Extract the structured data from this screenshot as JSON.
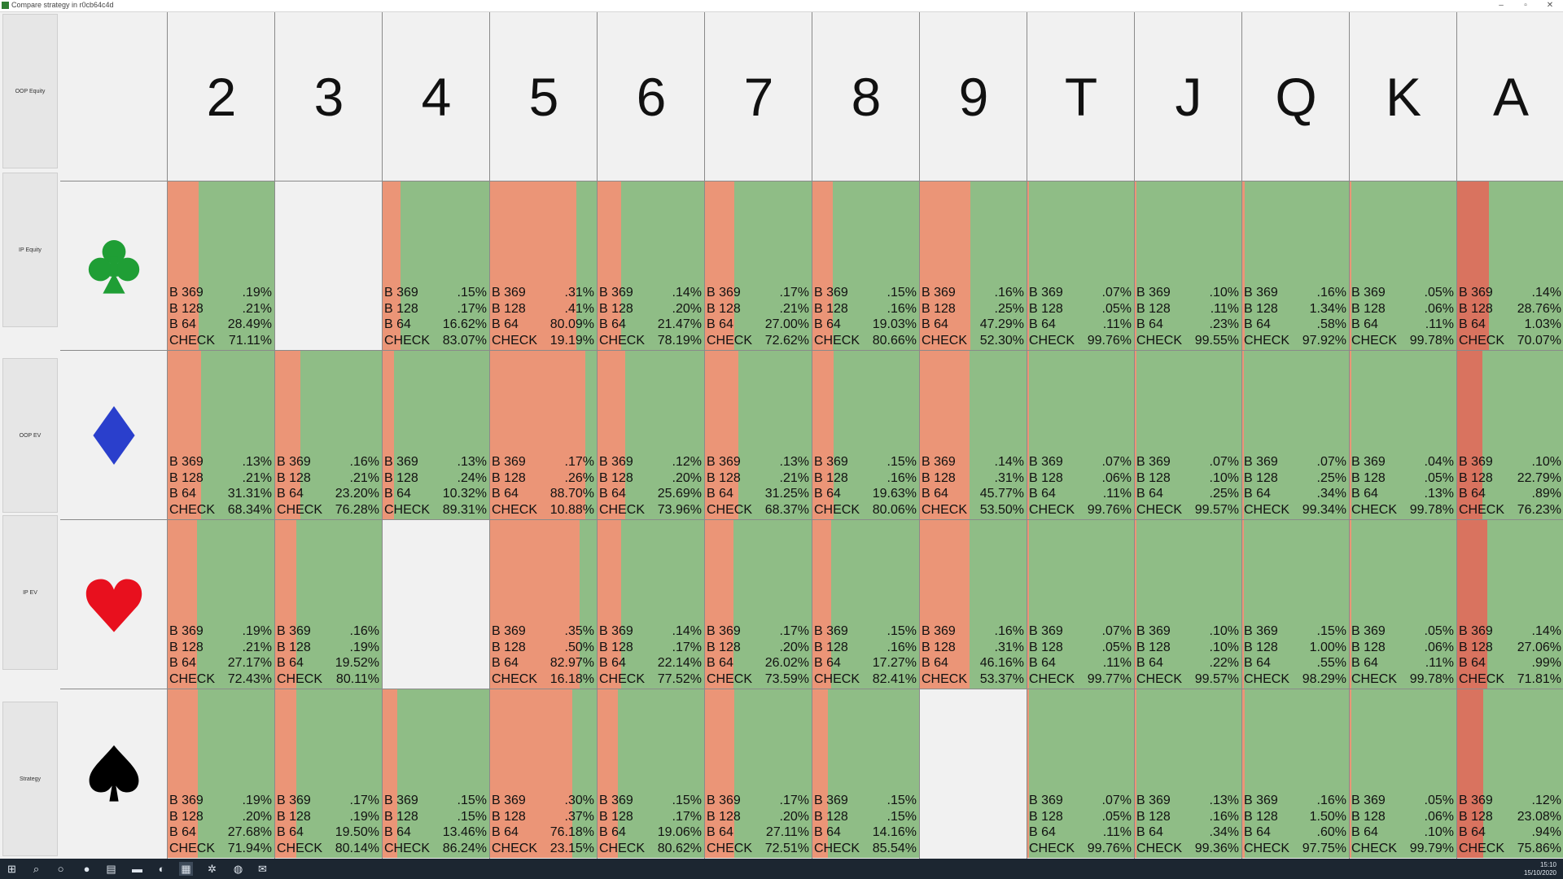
{
  "window": {
    "title": "Compare strategy in r0cb64c4d"
  },
  "side_tabs": [
    "OOP Equity",
    "IP Equity",
    "OOP EV",
    "IP EV",
    "Strategy"
  ],
  "ranks": [
    "2",
    "3",
    "4",
    "5",
    "6",
    "7",
    "8",
    "9",
    "T",
    "J",
    "Q",
    "K",
    "A"
  ],
  "suits": [
    {
      "name": "clubs",
      "color": "#1f9e35"
    },
    {
      "name": "diamonds",
      "color": "#2a3fcc"
    },
    {
      "name": "hearts",
      "color": "#e8101e"
    },
    {
      "name": "spades",
      "color": "#000000"
    }
  ],
  "colors": {
    "check": "#8fbd86",
    "bet": "#eb9577",
    "bet_strong": "#d9735f"
  },
  "action_labels": [
    "B 369",
    "B 128",
    "B 64",
    "CHECK"
  ],
  "rows": [
    [
      {
        "v": [
          ".19%",
          ".21%",
          "28.49%",
          "71.11%"
        ]
      },
      null,
      {
        "v": [
          ".15%",
          ".17%",
          "16.62%",
          "83.07%"
        ]
      },
      {
        "v": [
          ".31%",
          ".41%",
          "80.09%",
          "19.19%"
        ]
      },
      {
        "v": [
          ".14%",
          ".20%",
          "21.47%",
          "78.19%"
        ]
      },
      {
        "v": [
          ".17%",
          ".21%",
          "27.00%",
          "72.62%"
        ]
      },
      {
        "v": [
          ".15%",
          ".16%",
          "19.03%",
          "80.66%"
        ]
      },
      {
        "v": [
          ".16%",
          ".25%",
          "47.29%",
          "52.30%"
        ]
      },
      {
        "v": [
          ".07%",
          ".05%",
          ".11%",
          "99.76%"
        ]
      },
      {
        "v": [
          ".10%",
          ".11%",
          ".23%",
          "99.55%"
        ]
      },
      {
        "v": [
          ".16%",
          "1.34%",
          ".58%",
          "97.92%"
        ]
      },
      {
        "v": [
          ".05%",
          ".06%",
          ".11%",
          "99.78%"
        ]
      },
      {
        "v": [
          ".14%",
          "28.76%",
          "1.03%",
          "70.07%"
        ]
      }
    ],
    [
      {
        "v": [
          ".13%",
          ".21%",
          "31.31%",
          "68.34%"
        ]
      },
      {
        "v": [
          ".16%",
          ".21%",
          "23.20%",
          "76.28%"
        ]
      },
      {
        "v": [
          ".13%",
          ".24%",
          "10.32%",
          "89.31%"
        ]
      },
      {
        "v": [
          ".17%",
          ".26%",
          "88.70%",
          "10.88%"
        ]
      },
      {
        "v": [
          ".12%",
          ".20%",
          "25.69%",
          "73.96%"
        ]
      },
      {
        "v": [
          ".13%",
          ".21%",
          "31.25%",
          "68.37%"
        ]
      },
      {
        "v": [
          ".15%",
          ".16%",
          "19.63%",
          "80.06%"
        ]
      },
      {
        "v": [
          ".14%",
          ".31%",
          "45.77%",
          "53.50%"
        ]
      },
      {
        "v": [
          ".07%",
          ".06%",
          ".11%",
          "99.76%"
        ]
      },
      {
        "v": [
          ".07%",
          ".10%",
          ".25%",
          "99.57%"
        ]
      },
      {
        "v": [
          ".07%",
          ".25%",
          ".34%",
          "99.34%"
        ]
      },
      {
        "v": [
          ".04%",
          ".05%",
          ".13%",
          "99.78%"
        ]
      },
      {
        "v": [
          ".10%",
          "22.79%",
          ".89%",
          "76.23%"
        ]
      }
    ],
    [
      {
        "v": [
          ".19%",
          ".21%",
          "27.17%",
          "72.43%"
        ]
      },
      {
        "v": [
          ".16%",
          ".19%",
          "19.52%",
          "80.11%"
        ]
      },
      null,
      {
        "v": [
          ".35%",
          ".50%",
          "82.97%",
          "16.18%"
        ]
      },
      {
        "v": [
          ".14%",
          ".17%",
          "22.14%",
          "77.52%"
        ]
      },
      {
        "v": [
          ".17%",
          ".20%",
          "26.02%",
          "73.59%"
        ]
      },
      {
        "v": [
          ".15%",
          ".16%",
          "17.27%",
          "82.41%"
        ]
      },
      {
        "v": [
          ".16%",
          ".31%",
          "46.16%",
          "53.37%"
        ]
      },
      {
        "v": [
          ".07%",
          ".05%",
          ".11%",
          "99.77%"
        ]
      },
      {
        "v": [
          ".10%",
          ".10%",
          ".22%",
          "99.57%"
        ]
      },
      {
        "v": [
          ".15%",
          "1.00%",
          ".55%",
          "98.29%"
        ]
      },
      {
        "v": [
          ".05%",
          ".06%",
          ".11%",
          "99.78%"
        ]
      },
      {
        "v": [
          ".14%",
          "27.06%",
          ".99%",
          "71.81%"
        ]
      }
    ],
    [
      {
        "v": [
          ".19%",
          ".20%",
          "27.68%",
          "71.94%"
        ]
      },
      {
        "v": [
          ".17%",
          ".19%",
          "19.50%",
          "80.14%"
        ]
      },
      {
        "v": [
          ".15%",
          ".15%",
          "13.46%",
          "86.24%"
        ]
      },
      {
        "v": [
          ".30%",
          ".37%",
          "76.18%",
          "23.15%"
        ]
      },
      {
        "v": [
          ".15%",
          ".17%",
          "19.06%",
          "80.62%"
        ]
      },
      {
        "v": [
          ".17%",
          ".20%",
          "27.11%",
          "72.51%"
        ]
      },
      {
        "v": [
          ".15%",
          ".15%",
          "14.16%",
          "85.54%"
        ]
      },
      null,
      {
        "v": [
          ".07%",
          ".05%",
          ".11%",
          "99.76%"
        ]
      },
      {
        "v": [
          ".13%",
          ".16%",
          ".34%",
          "99.36%"
        ]
      },
      {
        "v": [
          ".16%",
          "1.50%",
          ".60%",
          "97.75%"
        ]
      },
      {
        "v": [
          ".05%",
          ".06%",
          ".10%",
          "99.79%"
        ]
      },
      {
        "v": [
          ".12%",
          "23.08%",
          ".94%",
          "75.86%"
        ]
      }
    ]
  ],
  "taskbar": [
    "windows",
    "search",
    "task-view",
    "chrome",
    "app",
    "explorer",
    "edge",
    "solver",
    "network",
    "store",
    "mail"
  ],
  "clock": {
    "time": "15:10",
    "date": "15/10/2020"
  }
}
